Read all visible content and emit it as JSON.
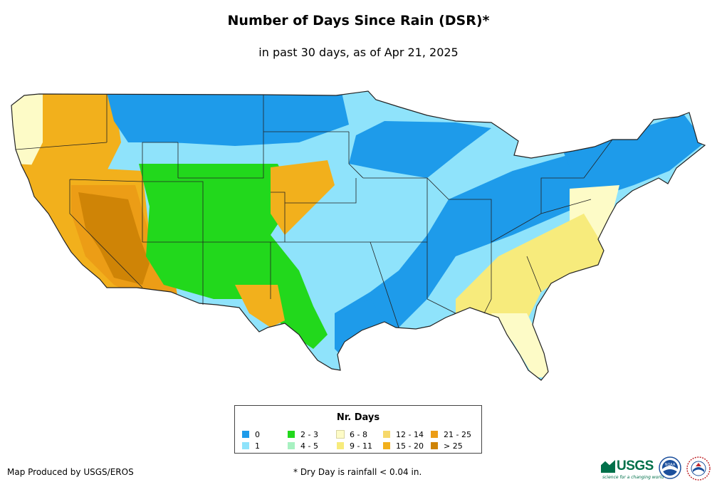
{
  "title": "Number of Days Since Rain (DSR)*",
  "subtitle": "in past 30 days, as of Apr 21, 2025",
  "legend": {
    "title": "Nr. Days",
    "items": [
      {
        "label": "0",
        "color": "#1e9bea"
      },
      {
        "label": "1",
        "color": "#8fe3fb"
      },
      {
        "label": "2 - 3",
        "color": "#22d81c"
      },
      {
        "label": "4 - 5",
        "color": "#a7f1c1"
      },
      {
        "label": "6 - 8",
        "color": "#fdfbc7"
      },
      {
        "label": "9 - 11",
        "color": "#f7eb7c"
      },
      {
        "label": "12 - 14",
        "color": "#f6d86a"
      },
      {
        "label": "15 - 20",
        "color": "#f2b01c"
      },
      {
        "label": "21 - 25",
        "color": "#ec9d16"
      },
      {
        "label": "> 25",
        "color": "#cf8406"
      }
    ]
  },
  "footer": {
    "credit": "Map Produced by USGS/EROS",
    "footnote": "* Dry Day is rainfall < 0.04 in."
  },
  "logos": [
    {
      "name": "usgs",
      "text": "USGS",
      "tagline": "science for a changing world",
      "color": "#00704a"
    },
    {
      "name": "noaa",
      "text": "NOAA",
      "color": "#1b4f9c"
    },
    {
      "name": "nws",
      "color": "#c0282d"
    }
  ],
  "regions": [
    {
      "name": "northwest-coast",
      "bin": "6 - 8"
    },
    {
      "name": "pacific-northwest-interior",
      "bin": "15 - 20"
    },
    {
      "name": "california",
      "bin": "15 - 20"
    },
    {
      "name": "nevada-arizona-core",
      "bin": "> 25"
    },
    {
      "name": "southwest-rim",
      "bin": "21 - 25"
    },
    {
      "name": "rockies-north",
      "bin": "0"
    },
    {
      "name": "rockies-central",
      "bin": "2 - 3"
    },
    {
      "name": "southern-plains-west",
      "bin": "15 - 20"
    },
    {
      "name": "texas-central",
      "bin": "2 - 3"
    },
    {
      "name": "central-plains",
      "bin": "1"
    },
    {
      "name": "mississippi-valley",
      "bin": "0"
    },
    {
      "name": "great-lakes-north",
      "bin": "0"
    },
    {
      "name": "northeast",
      "bin": "0"
    },
    {
      "name": "southeast",
      "bin": "9 - 11"
    },
    {
      "name": "florida",
      "bin": "6 - 8"
    },
    {
      "name": "mid-atlantic",
      "bin": "6 - 8"
    }
  ]
}
